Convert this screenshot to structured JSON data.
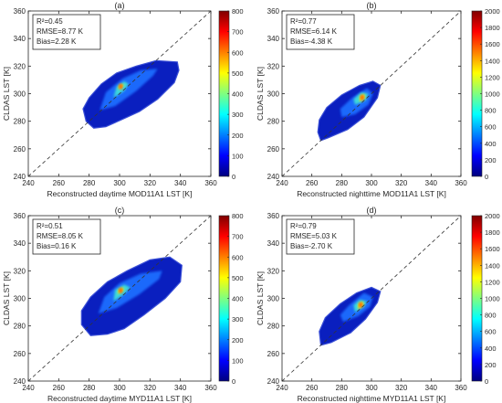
{
  "chart_data": [
    {
      "type": "scatter",
      "subtitle": "(a)",
      "xlabel": "Reconstructed daytime MOD11A1 LST [K]",
      "ylabel": "CLDAS LST [K]",
      "xlim": [
        240,
        360
      ],
      "ylim": [
        240,
        360
      ],
      "xticks": [
        "240",
        "260",
        "280",
        "300",
        "320",
        "340",
        "360"
      ],
      "yticks": [
        "240",
        "260",
        "280",
        "300",
        "320",
        "340",
        "360"
      ],
      "stats": [
        "R²=0.45",
        "RMSE=8.77 K",
        "Bias=2.28 K"
      ],
      "reference_line": "1:1 (dashed)",
      "colorbar": {
        "min": 0,
        "max": 800,
        "ticks": [
          "0",
          "100",
          "200",
          "300",
          "400",
          "500",
          "600",
          "700",
          "800"
        ],
        "colormap": "jet"
      },
      "density": {
        "outline": [
          [
            278,
            280
          ],
          [
            283,
            275
          ],
          [
            291,
            276
          ],
          [
            301,
            281
          ],
          [
            313,
            287
          ],
          [
            325,
            296
          ],
          [
            336,
            308
          ],
          [
            339,
            317
          ],
          [
            338,
            323
          ],
          [
            324,
            324
          ],
          [
            311,
            320
          ],
          [
            298,
            315
          ],
          [
            288,
            307
          ],
          [
            280,
            297
          ],
          [
            276,
            289
          ]
        ],
        "mid": [
          [
            287,
            288
          ],
          [
            297,
            291
          ],
          [
            311,
            302
          ],
          [
            322,
            313
          ],
          [
            325,
            318
          ],
          [
            314,
            317
          ],
          [
            302,
            311
          ],
          [
            291,
            301
          ]
        ],
        "core": [
          [
            296,
            297
          ],
          [
            303,
            302
          ],
          [
            306,
            307
          ],
          [
            303,
            309
          ],
          [
            298,
            305
          ]
        ],
        "peak": [
          [
            300,
            303
          ],
          [
            303,
            306
          ],
          [
            301,
            307
          ],
          [
            299,
            305
          ]
        ]
      }
    },
    {
      "type": "scatter",
      "subtitle": "(b)",
      "xlabel": "Reconstructed nighttime MOD11A1 LST [K]",
      "ylabel": "CLDAS LST [K]",
      "xlim": [
        240,
        360
      ],
      "ylim": [
        240,
        360
      ],
      "xticks": [
        "240",
        "260",
        "280",
        "300",
        "320",
        "340",
        "360"
      ],
      "yticks": [
        "240",
        "260",
        "280",
        "300",
        "320",
        "340",
        "360"
      ],
      "stats": [
        "R²=0.77",
        "RMSE=6.14 K",
        "Bias=-4.38 K"
      ],
      "reference_line": "1:1 (dashed)",
      "colorbar": {
        "min": 0,
        "max": 2000,
        "ticks": [
          "0",
          "200",
          "400",
          "600",
          "800",
          "1000",
          "1200",
          "1400",
          "1600",
          "1800",
          "2000"
        ],
        "colormap": "jet"
      },
      "density": {
        "outline": [
          [
            266,
            266
          ],
          [
            271,
            268
          ],
          [
            284,
            274
          ],
          [
            295,
            283
          ],
          [
            304,
            297
          ],
          [
            306,
            306
          ],
          [
            301,
            309
          ],
          [
            292,
            306
          ],
          [
            280,
            299
          ],
          [
            270,
            290
          ],
          [
            265,
            281
          ],
          [
            264,
            272
          ]
        ],
        "mid": [
          [
            280,
            283
          ],
          [
            289,
            285
          ],
          [
            298,
            292
          ],
          [
            301,
            300
          ],
          [
            297,
            304
          ],
          [
            287,
            297
          ],
          [
            279,
            289
          ]
        ],
        "core": [
          [
            289,
            292
          ],
          [
            296,
            295
          ],
          [
            298,
            300
          ],
          [
            293,
            301
          ],
          [
            288,
            296
          ]
        ],
        "peak": [
          [
            292,
            294
          ],
          [
            296,
            297
          ],
          [
            295,
            300
          ],
          [
            292,
            298
          ]
        ]
      }
    },
    {
      "type": "scatter",
      "subtitle": "(c)",
      "xlabel": "Reconstructed daytime MYD11A1 LST [K]",
      "ylabel": "CLDAS LST [K]",
      "xlim": [
        240,
        360
      ],
      "ylim": [
        240,
        360
      ],
      "xticks": [
        "240",
        "260",
        "280",
        "300",
        "320",
        "340",
        "360"
      ],
      "yticks": [
        "240",
        "260",
        "280",
        "300",
        "320",
        "340",
        "360"
      ],
      "stats": [
        "R²=0.51",
        "RMSE=8.05 K",
        "Bias=0.16 K"
      ],
      "reference_line": "1:1 (dashed)",
      "colorbar": {
        "min": 0,
        "max": 800,
        "ticks": [
          "0",
          "100",
          "200",
          "300",
          "400",
          "500",
          "600",
          "700",
          "800"
        ],
        "colormap": "jet"
      },
      "density": {
        "outline": [
          [
            275,
            281
          ],
          [
            281,
            273
          ],
          [
            292,
            274
          ],
          [
            303,
            278
          ],
          [
            316,
            288
          ],
          [
            330,
            300
          ],
          [
            340,
            312
          ],
          [
            341,
            324
          ],
          [
            333,
            330
          ],
          [
            320,
            328
          ],
          [
            305,
            320
          ],
          [
            292,
            312
          ],
          [
            281,
            301
          ],
          [
            275,
            291
          ]
        ],
        "mid": [
          [
            286,
            289
          ],
          [
            298,
            293
          ],
          [
            313,
            303
          ],
          [
            326,
            314
          ],
          [
            328,
            320
          ],
          [
            314,
            318
          ],
          [
            300,
            311
          ],
          [
            290,
            301
          ]
        ],
        "core": [
          [
            296,
            298
          ],
          [
            303,
            303
          ],
          [
            307,
            308
          ],
          [
            303,
            310
          ],
          [
            297,
            306
          ]
        ],
        "peak": [
          [
            299,
            303
          ],
          [
            303,
            306
          ],
          [
            302,
            308
          ],
          [
            299,
            306
          ]
        ]
      }
    },
    {
      "type": "scatter",
      "subtitle": "(d)",
      "xlabel": "Reconstructed nighttime MYD11A1 LST [K]",
      "ylabel": "CLDAS LST [K]",
      "xlim": [
        240,
        360
      ],
      "ylim": [
        240,
        360
      ],
      "xticks": [
        "240",
        "260",
        "280",
        "300",
        "320",
        "340",
        "360"
      ],
      "yticks": [
        "240",
        "260",
        "280",
        "300",
        "320",
        "340",
        "360"
      ],
      "stats": [
        "R²=0.79",
        "RMSE=5.03 K",
        "Bias=-2.70 K"
      ],
      "reference_line": "1:1 (dashed)",
      "colorbar": {
        "min": 0,
        "max": 2000,
        "ticks": [
          "0",
          "200",
          "400",
          "600",
          "800",
          "1000",
          "1200",
          "1400",
          "1600",
          "1800",
          "2000"
        ],
        "colormap": "jet"
      },
      "density": {
        "outline": [
          [
            266,
            266
          ],
          [
            273,
            268
          ],
          [
            286,
            275
          ],
          [
            296,
            285
          ],
          [
            304,
            297
          ],
          [
            306,
            305
          ],
          [
            300,
            308
          ],
          [
            290,
            304
          ],
          [
            279,
            296
          ],
          [
            269,
            286
          ],
          [
            265,
            276
          ]
        ],
        "mid": [
          [
            281,
            283
          ],
          [
            291,
            287
          ],
          [
            299,
            294
          ],
          [
            301,
            301
          ],
          [
            295,
            304
          ],
          [
            285,
            295
          ],
          [
            279,
            288
          ]
        ],
        "core": [
          [
            289,
            290
          ],
          [
            295,
            294
          ],
          [
            297,
            298
          ],
          [
            292,
            299
          ],
          [
            288,
            295
          ]
        ],
        "peak": [
          [
            291,
            292
          ],
          [
            295,
            295
          ],
          [
            294,
            298
          ],
          [
            291,
            296
          ]
        ]
      }
    }
  ],
  "colors": {
    "outline": "#0a1fbf",
    "mid": "#1f6dff",
    "core": "#41e0d6",
    "peak": "#ffe600",
    "accent": "#b30000",
    "reference_line": "#333333"
  }
}
